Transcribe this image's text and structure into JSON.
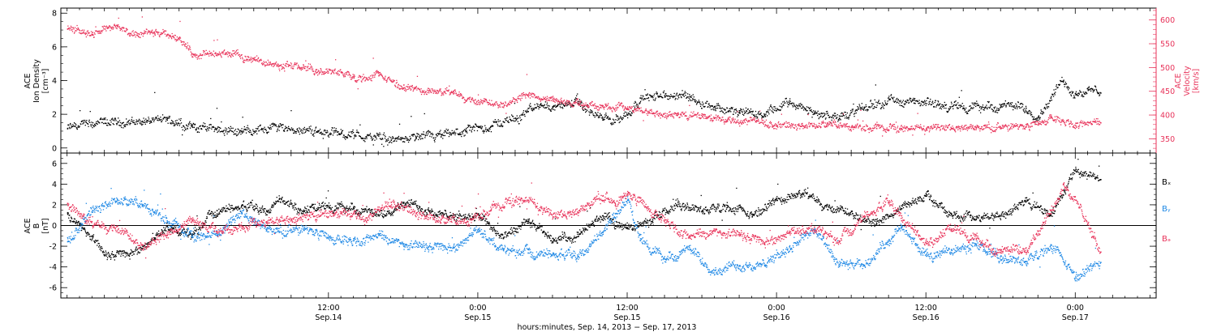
{
  "colors": {
    "black": "#000000",
    "red": "#e8335a",
    "blue": "#1e88e5"
  },
  "footer_text": "hours:minutes, Sep. 14, 2013 − Sep. 17, 2013",
  "chart_data": [
    {
      "type": "scatter",
      "panel": "top",
      "ylabel_left": [
        "ACE",
        "Ion Density",
        "[cm⁻³]"
      ],
      "ylabel_right": [
        "ACE",
        "Velocity",
        "[km/s]"
      ],
      "ylim_left": [
        -0.3,
        8.3
      ],
      "ylim_right": [
        320,
        625
      ],
      "yticks_left": [
        0,
        2,
        4,
        6,
        8
      ],
      "yticks_right": [
        350,
        400,
        450,
        500,
        550,
        600
      ],
      "xlim_hours": [
        -9.5,
        78.5
      ],
      "x_tick_labels": [
        {
          "x": 12,
          "time": "12:00",
          "date": "Sep.14"
        },
        {
          "x": 24,
          "time": "0:00",
          "date": "Sep.15"
        },
        {
          "x": 36,
          "time": "12:00",
          "date": "Sep.15"
        },
        {
          "x": 48,
          "time": "0:00",
          "date": "Sep.16"
        },
        {
          "x": 60,
          "time": "12:00",
          "date": "Sep.16"
        },
        {
          "x": 72,
          "time": "0:00",
          "date": "Sep.17"
        }
      ],
      "series": [
        {
          "axis": "left",
          "color": "#000000",
          "points": [
            [
              -9,
              1.2
            ],
            [
              -6,
              1.5
            ],
            [
              -3,
              1.6
            ],
            [
              -1,
              1.7
            ],
            [
              1,
              1.3
            ],
            [
              3,
              1.2
            ],
            [
              5,
              1.0
            ],
            [
              8,
              1.3
            ],
            [
              11,
              1.0
            ],
            [
              13,
              0.9
            ],
            [
              15,
              0.7
            ],
            [
              17,
              0.5
            ],
            [
              19,
              0.6
            ],
            [
              21,
              0.7
            ],
            [
              23,
              1.0
            ],
            [
              25,
              1.3
            ],
            [
              26,
              1.6
            ],
            [
              27,
              1.8
            ],
            [
              28,
              2.2
            ],
            [
              29,
              2.6
            ],
            [
              30,
              2.5
            ],
            [
              32,
              2.7
            ],
            [
              34,
              1.7
            ],
            [
              36,
              2.0
            ],
            [
              37,
              3.0
            ],
            [
              39,
              3.1
            ],
            [
              41,
              3.1
            ],
            [
              43,
              2.5
            ],
            [
              45,
              2.1
            ],
            [
              47,
              2.0
            ],
            [
              49,
              2.7
            ],
            [
              51,
              2.1
            ],
            [
              53,
              1.8
            ],
            [
              55,
              2.4
            ],
            [
              57,
              2.9
            ],
            [
              59,
              2.7
            ],
            [
              61,
              2.6
            ],
            [
              63,
              2.4
            ],
            [
              66,
              2.5
            ],
            [
              68,
              2.4
            ],
            [
              69,
              1.9
            ],
            [
              70,
              3.0
            ],
            [
              71,
              4.0
            ],
            [
              72,
              3.2
            ],
            [
              73,
              3.5
            ],
            [
              74,
              3.3
            ]
          ]
        },
        {
          "axis": "right",
          "color": "#e8335a",
          "points": [
            [
              -9,
              582
            ],
            [
              -7,
              575
            ],
            [
              -5,
              590
            ],
            [
              -4,
              568
            ],
            [
              -2,
              572
            ],
            [
              0,
              565
            ],
            [
              1,
              530
            ],
            [
              3,
              527
            ],
            [
              4,
              532
            ],
            [
              6,
              518
            ],
            [
              8,
              505
            ],
            [
              10,
              500
            ],
            [
              11,
              490
            ],
            [
              13,
              492
            ],
            [
              14,
              480
            ],
            [
              16,
              484
            ],
            [
              18,
              458
            ],
            [
              20,
              452
            ],
            [
              22,
              446
            ],
            [
              24,
              432
            ],
            [
              26,
              426
            ],
            [
              28,
              443
            ],
            [
              30,
              431
            ],
            [
              32,
              424
            ],
            [
              34,
              421
            ],
            [
              36,
              415
            ],
            [
              38,
              405
            ],
            [
              40,
              401
            ],
            [
              42,
              398
            ],
            [
              44,
              388
            ],
            [
              46,
              391
            ],
            [
              48,
              379
            ],
            [
              50,
              378
            ],
            [
              52,
              381
            ],
            [
              54,
              375
            ],
            [
              56,
              373
            ],
            [
              58,
              373
            ],
            [
              60,
              373
            ],
            [
              62,
              373
            ],
            [
              64,
              374
            ],
            [
              66,
              374
            ],
            [
              68,
              376
            ],
            [
              69,
              384
            ],
            [
              70,
              398
            ],
            [
              71,
              388
            ],
            [
              72,
              384
            ],
            [
              74,
              385
            ]
          ]
        }
      ]
    },
    {
      "type": "scatter",
      "panel": "bottom",
      "ylabel_left": [
        "ACE",
        "B",
        "[nT]"
      ],
      "ylim": [
        -7,
        7
      ],
      "yticks": [
        -6,
        -4,
        -2,
        0,
        2,
        4,
        6
      ],
      "zero_line": true,
      "legend": [
        "Bₓ",
        "Bᵧ",
        "Bₔ"
      ],
      "legend_position": "right",
      "series": [
        {
          "name": "Bₓ",
          "color": "#000000",
          "points": [
            [
              -9,
              1.2
            ],
            [
              -7,
              -1.0
            ],
            [
              -6,
              -2.8
            ],
            [
              -4,
              -2.7
            ],
            [
              -2,
              -1.2
            ],
            [
              -1,
              0.0
            ],
            [
              1,
              -0.9
            ],
            [
              3,
              1.5
            ],
            [
              5,
              2.0
            ],
            [
              7,
              1.5
            ],
            [
              8,
              2.6
            ],
            [
              10,
              1.5
            ],
            [
              12,
              1.8
            ],
            [
              14,
              1.7
            ],
            [
              16,
              1.0
            ],
            [
              18,
              2.3
            ],
            [
              20,
              1.5
            ],
            [
              22,
              0.8
            ],
            [
              24,
              1.2
            ],
            [
              26,
              -1.2
            ],
            [
              28,
              0.3
            ],
            [
              30,
              -1.2
            ],
            [
              32,
              -1.0
            ],
            [
              34,
              1.0
            ],
            [
              36,
              -0.2
            ],
            [
              38,
              0.6
            ],
            [
              40,
              1.9
            ],
            [
              42,
              1.5
            ],
            [
              44,
              2.0
            ],
            [
              46,
              0.9
            ],
            [
              48,
              2.5
            ],
            [
              50,
              3.1
            ],
            [
              52,
              2.0
            ],
            [
              54,
              1.4
            ],
            [
              56,
              0.2
            ],
            [
              58,
              1.7
            ],
            [
              60,
              2.9
            ],
            [
              62,
              1.2
            ],
            [
              64,
              0.7
            ],
            [
              66,
              1.0
            ],
            [
              68,
              2.4
            ],
            [
              70,
              1.0
            ],
            [
              71,
              3.0
            ],
            [
              72,
              5.5
            ],
            [
              74,
              4.5
            ]
          ]
        },
        {
          "name": "Bᵧ",
          "color": "#1e88e5",
          "points": [
            [
              -9,
              -1.5
            ],
            [
              -7,
              1.5
            ],
            [
              -5,
              2.5
            ],
            [
              -3,
              2.0
            ],
            [
              -1,
              0.5
            ],
            [
              1,
              -1.0
            ],
            [
              3,
              -0.9
            ],
            [
              5,
              1.2
            ],
            [
              7,
              -0.3
            ],
            [
              8,
              -0.6
            ],
            [
              10,
              -0.4
            ],
            [
              12,
              -1.0
            ],
            [
              14,
              -1.4
            ],
            [
              16,
              -0.9
            ],
            [
              18,
              -1.7
            ],
            [
              20,
              -2.0
            ],
            [
              22,
              -2.1
            ],
            [
              24,
              -0.3
            ],
            [
              26,
              -2.3
            ],
            [
              28,
              -2.6
            ],
            [
              30,
              -2.6
            ],
            [
              32,
              -2.9
            ],
            [
              34,
              -0.6
            ],
            [
              35,
              1.2
            ],
            [
              36,
              2.5
            ],
            [
              37,
              -1.4
            ],
            [
              39,
              -3.2
            ],
            [
              41,
              -2.3
            ],
            [
              43,
              -4.3
            ],
            [
              45,
              -3.8
            ],
            [
              47,
              -3.8
            ],
            [
              49,
              -2.0
            ],
            [
              51,
              -0.3
            ],
            [
              53,
              -3.9
            ],
            [
              55,
              -3.8
            ],
            [
              57,
              -1.3
            ],
            [
              58,
              -0.2
            ],
            [
              60,
              -2.9
            ],
            [
              62,
              -2.3
            ],
            [
              64,
              -1.9
            ],
            [
              66,
              -3.3
            ],
            [
              68,
              -3.4
            ],
            [
              70,
              -1.8
            ],
            [
              72,
              -5.0
            ],
            [
              74,
              -3.5
            ]
          ]
        },
        {
          "name": "Bₔ",
          "color": "#e8335a",
          "points": [
            [
              -9,
              2.2
            ],
            [
              -7,
              0.0
            ],
            [
              -5,
              0.0
            ],
            [
              -3,
              -1.8
            ],
            [
              -1,
              -0.9
            ],
            [
              1,
              0.5
            ],
            [
              3,
              -0.5
            ],
            [
              5,
              0.0
            ],
            [
              7,
              0.3
            ],
            [
              9,
              0.7
            ],
            [
              11,
              1.0
            ],
            [
              13,
              1.2
            ],
            [
              15,
              0.8
            ],
            [
              17,
              2.3
            ],
            [
              19,
              1.2
            ],
            [
              21,
              0.6
            ],
            [
              23,
              0.3
            ],
            [
              25,
              1.5
            ],
            [
              27,
              2.5
            ],
            [
              28,
              2.5
            ],
            [
              30,
              0.9
            ],
            [
              32,
              1.3
            ],
            [
              34,
              2.9
            ],
            [
              35,
              2.0
            ],
            [
              36,
              3.0
            ],
            [
              37,
              2.4
            ],
            [
              39,
              0.6
            ],
            [
              41,
              -1.0
            ],
            [
              43,
              -0.5
            ],
            [
              45,
              -0.8
            ],
            [
              47,
              -1.6
            ],
            [
              49,
              -0.6
            ],
            [
              51,
              -0.1
            ],
            [
              53,
              -1.5
            ],
            [
              55,
              1.0
            ],
            [
              57,
              2.3
            ],
            [
              58,
              1.0
            ],
            [
              60,
              -1.7
            ],
            [
              62,
              -0.3
            ],
            [
              64,
              -1.3
            ],
            [
              66,
              -2.6
            ],
            [
              68,
              -2.1
            ],
            [
              70,
              1.2
            ],
            [
              71,
              4.0
            ],
            [
              72,
              2.5
            ],
            [
              74,
              -2.5
            ]
          ]
        }
      ]
    }
  ]
}
